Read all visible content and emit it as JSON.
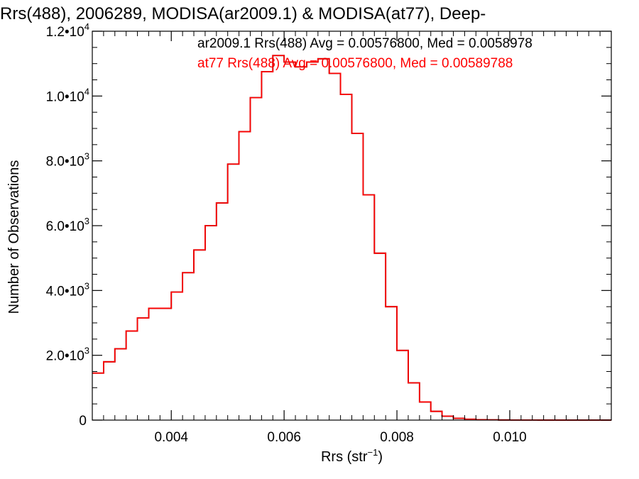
{
  "chart_data": {
    "type": "line",
    "title": "Rrs(488), 2006289, MODISA(ar2009.1) & MODISA(at77), Deep-",
    "xlabel": "Rrs (str",
    "xlabel_sup": "−1",
    "xlabel_close": ")",
    "ylabel": "Number of Observations",
    "xlim": [
      0.0026,
      0.0118
    ],
    "ylim": [
      0,
      12000
    ],
    "x_ticks": [
      {
        "value": 0.004,
        "label": "0.004"
      },
      {
        "value": 0.006,
        "label": "0.006"
      },
      {
        "value": 0.008,
        "label": "0.008"
      },
      {
        "value": 0.01,
        "label": "0.010"
      }
    ],
    "y_ticks": [
      {
        "value": 0,
        "mant": "0",
        "exp": ""
      },
      {
        "value": 2000,
        "mant": "2.0•10",
        "exp": "3"
      },
      {
        "value": 4000,
        "mant": "4.0•10",
        "exp": "3"
      },
      {
        "value": 6000,
        "mant": "6.0•10",
        "exp": "3"
      },
      {
        "value": 8000,
        "mant": "8.0•10",
        "exp": "3"
      },
      {
        "value": 10000,
        "mant": "1.0•10",
        "exp": "4"
      },
      {
        "value": 12000,
        "mant": "1.2•10",
        "exp": "4"
      }
    ],
    "annotations": [
      "ar2009.1 Rrs(488) Avg = 0.00576800, Med = 0.0058978",
      "at77 Rrs(488) Avg = 0.00576800, Med = 0.00589788"
    ],
    "series": [
      {
        "name": "ar2009.1",
        "color": "#000000",
        "x": [
          0.0026,
          0.0028,
          0.003,
          0.0032,
          0.0034,
          0.0036,
          0.0038,
          0.004,
          0.0042,
          0.0044,
          0.0046,
          0.0048,
          0.005,
          0.0052,
          0.0054,
          0.0056,
          0.0058,
          0.006,
          0.0062,
          0.0064,
          0.0066,
          0.0068,
          0.007,
          0.0072,
          0.0074,
          0.0076,
          0.0078,
          0.008,
          0.0082,
          0.0084,
          0.0086,
          0.0088,
          0.009,
          0.0092,
          0.0094,
          0.0096,
          0.0098,
          0.01,
          0.0105,
          0.011,
          0.0118
        ],
        "y": [
          1450,
          1800,
          2200,
          2750,
          3150,
          3450,
          3450,
          3950,
          4550,
          5250,
          6000,
          6700,
          7900,
          8900,
          9950,
          10750,
          11250,
          11050,
          10900,
          11050,
          11150,
          10700,
          10050,
          8850,
          6950,
          5150,
          3500,
          2150,
          1150,
          560,
          270,
          120,
          55,
          28,
          14,
          8,
          4,
          2,
          1,
          0,
          0
        ]
      },
      {
        "name": "at77",
        "color": "#ff0000",
        "x": [
          0.0026,
          0.0028,
          0.003,
          0.0032,
          0.0034,
          0.0036,
          0.0038,
          0.004,
          0.0042,
          0.0044,
          0.0046,
          0.0048,
          0.005,
          0.0052,
          0.0054,
          0.0056,
          0.0058,
          0.006,
          0.0062,
          0.0064,
          0.0066,
          0.0068,
          0.007,
          0.0072,
          0.0074,
          0.0076,
          0.0078,
          0.008,
          0.0082,
          0.0084,
          0.0086,
          0.0088,
          0.009,
          0.0092,
          0.0094,
          0.0096,
          0.0098,
          0.01,
          0.0105,
          0.011,
          0.0118
        ],
        "y": [
          1450,
          1800,
          2200,
          2750,
          3150,
          3450,
          3450,
          3950,
          4550,
          5250,
          6000,
          6700,
          7900,
          8900,
          9950,
          10750,
          11250,
          11050,
          10900,
          11050,
          11150,
          10700,
          10050,
          8850,
          6950,
          5150,
          3500,
          2150,
          1150,
          560,
          270,
          120,
          55,
          28,
          14,
          8,
          4,
          2,
          1,
          0,
          0
        ]
      }
    ],
    "grid": false
  }
}
